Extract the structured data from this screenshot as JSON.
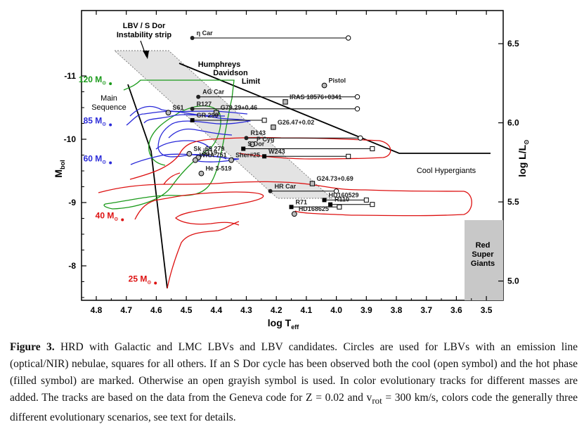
{
  "chart_data": {
    "type": "scatter",
    "xlabel": "log T",
    "xlabel_sub": "eff",
    "ylabel_left": "M",
    "ylabel_left_sub": "bol",
    "ylabel_right": "log L/L",
    "ylabel_right_sub": "⊙",
    "x_ticks": [
      "4.8",
      "4.7",
      "4.6",
      "4.5",
      "4.4",
      "4.3",
      "4.2",
      "4.1",
      "4.0",
      "3.9",
      "3.8",
      "3.7",
      "3.6",
      "3.5"
    ],
    "xlim": [
      4.8,
      3.5
    ],
    "y_left_ticks": [
      "-11",
      "-10",
      "-9",
      "-8"
    ],
    "ylim": [
      -7.5,
      -11.8
    ],
    "y_right_ticks": [
      "6.5",
      "6.0",
      "5.5",
      "5.0"
    ],
    "mass_labels": [
      {
        "text": "120 M",
        "color": "#1a9a1a",
        "x": 4.72,
        "y": -10.9
      },
      {
        "text": "85 M",
        "color": "#2a2ad8",
        "x": 4.72,
        "y": -10.25
      },
      {
        "text": "60 M",
        "color": "#2a2ad8",
        "x": 4.72,
        "y": -9.65
      },
      {
        "text": "40 M",
        "color": "#dd1111",
        "x": 4.68,
        "y": -8.75
      },
      {
        "text": "25 M",
        "color": "#dd1111",
        "x": 4.57,
        "y": -7.75
      }
    ],
    "annotations": {
      "strip": [
        "LBV / S Dor",
        "Instability strip"
      ],
      "hd_limit": [
        "Humphreys",
        "Davidson",
        "Limit"
      ],
      "main_sequence": [
        "Main",
        "Sequence"
      ],
      "cool_hypergiants": "Cool Hypergiants",
      "rsg": [
        "Red",
        "Super",
        "Giants"
      ]
    },
    "stars": [
      {
        "name": "η Car",
        "hot": 4.48,
        "cool": 3.96,
        "y": -11.6,
        "sym": "circle"
      },
      {
        "name": "Pistol",
        "x": 4.04,
        "y": -10.85,
        "sym": "gray-circle"
      },
      {
        "name": "AG Car",
        "hot": 4.46,
        "cool": 3.93,
        "y": -10.67,
        "sym": "circle"
      },
      {
        "name": "IRAS 18576+0341",
        "x": 4.17,
        "y": -10.59,
        "sym": "gray-square"
      },
      {
        "name": "R127",
        "hot": 4.48,
        "cool": 3.93,
        "y": -10.48,
        "sym": "circle"
      },
      {
        "name": "S61",
        "x": 4.56,
        "y": -10.42,
        "sym": "gray-circle"
      },
      {
        "name": "G79.29+0.46",
        "x": 4.4,
        "y": -10.42,
        "sym": "gray-square"
      },
      {
        "name": "GR 290",
        "hot": 4.48,
        "cool": 4.24,
        "y": -10.3,
        "sym": "square"
      },
      {
        "name": "G26.47+0.02",
        "x": 4.21,
        "y": -10.19,
        "sym": "gray-square"
      },
      {
        "name": "R143",
        "hot": 4.3,
        "cool": 3.92,
        "y": -10.02,
        "sym": "circle"
      },
      {
        "name": "P Cyg",
        "x": 4.28,
        "y": -9.92,
        "sym": "gray-circle"
      },
      {
        "name": "S Dor",
        "hot": 4.31,
        "cool": 3.88,
        "y": -9.85,
        "sym": "square"
      },
      {
        "name": "W243",
        "hot": 4.24,
        "cool": 3.96,
        "y": -9.73,
        "sym": "square"
      },
      {
        "name": "Sk -69 279",
        "x": 4.49,
        "y": -9.77,
        "sym": "gray-circle"
      },
      {
        "name": "S119",
        "x": 4.46,
        "y": -9.71,
        "sym": "gray-circle"
      },
      {
        "name": "WRA 751",
        "x": 4.47,
        "y": -9.67,
        "sym": "gray-circle"
      },
      {
        "name": "Sher#25",
        "x": 4.35,
        "y": -9.67,
        "sym": "gray-circle"
      },
      {
        "name": "He 3-519",
        "x": 4.45,
        "y": -9.46,
        "sym": "gray-circle"
      },
      {
        "name": "G24.73+0.69",
        "x": 4.08,
        "y": -9.3,
        "sym": "gray-square"
      },
      {
        "name": "HR Car",
        "hot": 4.22,
        "cool": 4.0,
        "y": -9.18,
        "sym": "circle"
      },
      {
        "name": "HD160529",
        "hot": 4.04,
        "cool": 3.9,
        "y": -9.04,
        "sym": "square"
      },
      {
        "name": "R110",
        "hot": 4.02,
        "cool": 3.88,
        "y": -8.97,
        "sym": "square"
      },
      {
        "name": "R71",
        "hot": 4.15,
        "cool": 3.99,
        "y": -8.93,
        "sym": "square"
      },
      {
        "name": "HD168625",
        "x": 4.14,
        "y": -8.82,
        "sym": "gray-circle"
      }
    ]
  },
  "caption": {
    "label": "Figure 3.",
    "text": "HRD with Galactic and LMC LBVs and LBV candidates. Circles are used for LBVs with an emission line (optical/NIR) nebulae, squares for all others. If an S Dor cycle has been observed both the cool (open symbol) and the hot phase (filled symbol) are marked. Otherwise an open grayish symbol is used. In color evolutionary tracks for different masses are added. The tracks are based on the data from the Geneva code for Z = 0.02 and v",
    "vrot_sub": "rot",
    "text_end": " = 300 km/s, colors code the generally three different evolutionary scenarios, see text for details."
  }
}
